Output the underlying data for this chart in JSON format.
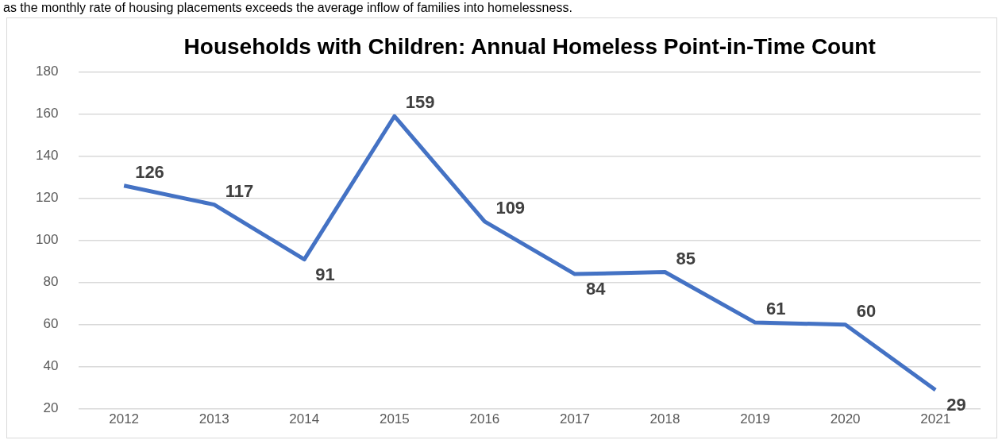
{
  "chart_data": {
    "type": "line",
    "title": "Households with Children: Annual Homeless Point-in-Time Count",
    "annotations": [
      "as the monthly rate of housing placements exceeds the average inflow of families into homelessness."
    ],
    "categories": [
      "2012",
      "2013",
      "2014",
      "2015",
      "2016",
      "2017",
      "2018",
      "2019",
      "2020",
      "2021"
    ],
    "series": [
      {
        "color": "#4472c4",
        "values": [
          126,
          117,
          91,
          159,
          109,
          84,
          85,
          61,
          60,
          29
        ]
      }
    ],
    "ylim": [
      20,
      180
    ],
    "yticks": [
      20,
      40,
      60,
      80,
      100,
      120,
      140,
      160,
      180
    ],
    "grid": "y",
    "legend": false,
    "marker": "none",
    "line_style": "solid",
    "data_labels": true
  }
}
